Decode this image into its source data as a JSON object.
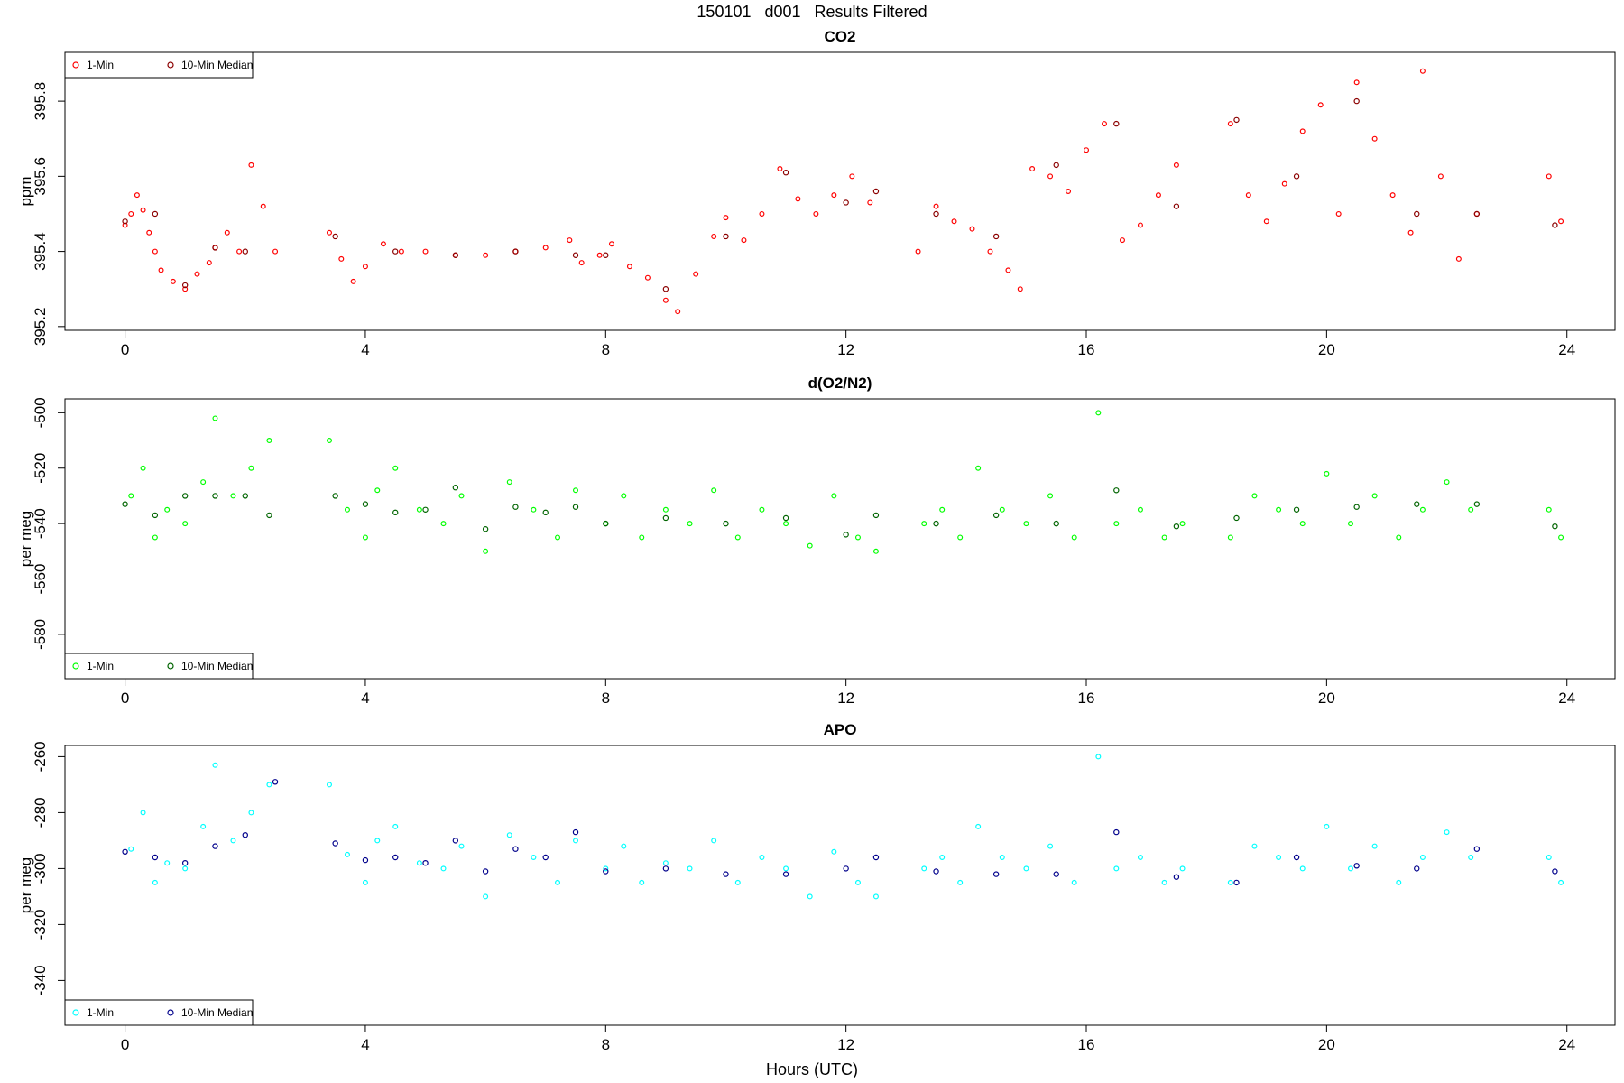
{
  "page": {
    "title": "150101   d001   Results Filtered",
    "x_axis_title": "Hours (UTC)"
  },
  "chart_data": [
    {
      "type": "scatter",
      "title": "CO2",
      "ylabel": "ppm",
      "xlabel": "Hours (UTC)",
      "xlim": [
        -1,
        24.8
      ],
      "ylim": [
        395.19,
        395.93
      ],
      "x_ticks": [
        "0",
        "4",
        "8",
        "12",
        "16",
        "20",
        "24"
      ],
      "y_ticks": [
        "395.2",
        "395.4",
        "395.6",
        "395.8"
      ],
      "legend": [
        "1-Min",
        "10-Min Median"
      ],
      "legend_position": "top-left",
      "colors": {
        "one_min": "#ff0000",
        "median": "#8b0000"
      },
      "series": [
        {
          "name": "1-Min",
          "x": [
            0.0,
            0.1,
            0.2,
            0.3,
            0.4,
            0.5,
            0.6,
            0.8,
            1.0,
            1.2,
            1.4,
            1.5,
            1.7,
            1.9,
            2.1,
            2.3,
            2.5,
            3.4,
            3.6,
            3.8,
            4.0,
            4.3,
            4.6,
            5.0,
            5.5,
            6.0,
            6.5,
            7.0,
            7.4,
            7.6,
            7.9,
            8.1,
            8.4,
            8.7,
            9.0,
            9.2,
            9.5,
            9.8,
            10.0,
            10.3,
            10.6,
            10.9,
            11.2,
            11.5,
            11.8,
            12.1,
            12.4,
            13.2,
            13.5,
            13.8,
            14.1,
            14.4,
            14.7,
            14.9,
            15.1,
            15.4,
            15.7,
            16.0,
            16.3,
            16.6,
            16.9,
            17.2,
            17.5,
            18.4,
            18.7,
            19.0,
            19.3,
            19.6,
            19.9,
            20.2,
            20.5,
            20.8,
            21.1,
            21.4,
            21.6,
            21.9,
            22.2,
            22.5,
            23.7,
            23.9
          ],
          "values": [
            395.47,
            395.5,
            395.55,
            395.51,
            395.45,
            395.4,
            395.35,
            395.32,
            395.3,
            395.34,
            395.37,
            395.41,
            395.45,
            395.4,
            395.63,
            395.52,
            395.4,
            395.45,
            395.38,
            395.32,
            395.36,
            395.42,
            395.4,
            395.4,
            395.39,
            395.39,
            395.4,
            395.41,
            395.43,
            395.37,
            395.39,
            395.42,
            395.36,
            395.33,
            395.27,
            395.24,
            395.34,
            395.44,
            395.49,
            395.43,
            395.5,
            395.62,
            395.54,
            395.5,
            395.55,
            395.6,
            395.53,
            395.4,
            395.52,
            395.48,
            395.46,
            395.4,
            395.35,
            395.3,
            395.62,
            395.6,
            395.56,
            395.67,
            395.74,
            395.43,
            395.47,
            395.55,
            395.63,
            395.74,
            395.55,
            395.48,
            395.58,
            395.72,
            395.79,
            395.5,
            395.85,
            395.7,
            395.55,
            395.45,
            395.88,
            395.6,
            395.38,
            395.5,
            395.6,
            395.48
          ]
        },
        {
          "name": "10-Min Median",
          "x": [
            0.0,
            0.5,
            1.0,
            1.5,
            2.0,
            3.5,
            4.5,
            5.5,
            6.5,
            7.5,
            8.0,
            9.0,
            10.0,
            11.0,
            12.0,
            12.5,
            13.5,
            14.5,
            15.5,
            16.5,
            17.5,
            18.5,
            19.5,
            20.5,
            21.5,
            22.5,
            23.8
          ],
          "values": [
            395.48,
            395.5,
            395.31,
            395.41,
            395.4,
            395.44,
            395.4,
            395.39,
            395.4,
            395.39,
            395.39,
            395.3,
            395.44,
            395.61,
            395.53,
            395.56,
            395.5,
            395.44,
            395.63,
            395.74,
            395.52,
            395.75,
            395.6,
            395.8,
            395.5,
            395.5,
            395.47
          ]
        }
      ]
    },
    {
      "type": "scatter",
      "title": "d(O2/N2)",
      "ylabel": "per meg",
      "xlabel": "Hours (UTC)",
      "xlim": [
        -1,
        24.8
      ],
      "ylim": [
        -596,
        -495
      ],
      "x_ticks": [
        "0",
        "4",
        "8",
        "12",
        "16",
        "20",
        "24"
      ],
      "y_ticks": [
        "-500",
        "-520",
        "-540",
        "-560",
        "-580"
      ],
      "legend": [
        "1-Min",
        "10-Min Median"
      ],
      "legend_position": "bottom-left",
      "colors": {
        "one_min": "#00ff00",
        "median": "#006400"
      },
      "series": [
        {
          "name": "1-Min",
          "x": [
            0.1,
            0.3,
            0.5,
            0.7,
            1.0,
            1.3,
            1.5,
            1.8,
            2.1,
            2.4,
            3.4,
            3.7,
            4.0,
            4.2,
            4.5,
            4.9,
            5.3,
            5.6,
            6.0,
            6.4,
            6.8,
            7.2,
            7.5,
            8.0,
            8.3,
            8.6,
            9.0,
            9.4,
            9.8,
            10.2,
            10.6,
            11.0,
            11.4,
            11.8,
            12.2,
            12.5,
            13.3,
            13.6,
            13.9,
            14.2,
            14.6,
            15.0,
            15.4,
            15.8,
            16.2,
            16.5,
            16.9,
            17.3,
            17.6,
            18.4,
            18.8,
            19.2,
            19.6,
            20.0,
            20.4,
            20.8,
            21.2,
            21.6,
            22.0,
            22.4,
            23.7,
            23.9
          ],
          "values": [
            -530,
            -520,
            -545,
            -535,
            -540,
            -525,
            -502,
            -530,
            -520,
            -510,
            -510,
            -535,
            -545,
            -528,
            -520,
            -535,
            -540,
            -530,
            -550,
            -525,
            -535,
            -545,
            -528,
            -540,
            -530,
            -545,
            -535,
            -540,
            -528,
            -545,
            -535,
            -540,
            -548,
            -530,
            -545,
            -550,
            -540,
            -535,
            -545,
            -520,
            -535,
            -540,
            -530,
            -545,
            -500,
            -540,
            -535,
            -545,
            -540,
            -545,
            -530,
            -535,
            -540,
            -522,
            -540,
            -530,
            -545,
            -535,
            -525,
            -535,
            -535,
            -545
          ]
        },
        {
          "name": "10-Min Median",
          "x": [
            0.0,
            0.5,
            1.0,
            1.5,
            2.0,
            2.4,
            3.5,
            4.0,
            4.5,
            5.0,
            5.5,
            6.0,
            6.5,
            7.0,
            7.5,
            8.0,
            9.0,
            10.0,
            11.0,
            12.0,
            12.5,
            13.5,
            14.5,
            15.5,
            16.5,
            17.5,
            18.5,
            19.5,
            20.5,
            21.5,
            22.5,
            23.8
          ],
          "values": [
            -533,
            -537,
            -530,
            -530,
            -530,
            -537,
            -530,
            -533,
            -536,
            -535,
            -527,
            -542,
            -534,
            -536,
            -534,
            -540,
            -538,
            -540,
            -538,
            -544,
            -537,
            -540,
            -537,
            -540,
            -528,
            -541,
            -538,
            -535,
            -534,
            -533,
            -533,
            -541
          ]
        }
      ]
    },
    {
      "type": "scatter",
      "title": "APO",
      "ylabel": "per meg",
      "xlabel": "Hours (UTC)",
      "xlim": [
        -1,
        24.8
      ],
      "ylim": [
        -356,
        -256
      ],
      "x_ticks": [
        "0",
        "4",
        "8",
        "12",
        "16",
        "20",
        "24"
      ],
      "y_ticks": [
        "-260",
        "-280",
        "-300",
        "-320",
        "-340"
      ],
      "legend": [
        "1-Min",
        "10-Min Median"
      ],
      "legend_position": "bottom-left",
      "colors": {
        "one_min": "#00ffff",
        "median": "#00008b"
      },
      "series": [
        {
          "name": "1-Min",
          "x": [
            0.1,
            0.3,
            0.5,
            0.7,
            1.0,
            1.3,
            1.5,
            1.8,
            2.1,
            2.4,
            3.4,
            3.7,
            4.0,
            4.2,
            4.5,
            4.9,
            5.3,
            5.6,
            6.0,
            6.4,
            6.8,
            7.2,
            7.5,
            8.0,
            8.3,
            8.6,
            9.0,
            9.4,
            9.8,
            10.2,
            10.6,
            11.0,
            11.4,
            11.8,
            12.2,
            12.5,
            13.3,
            13.6,
            13.9,
            14.2,
            14.6,
            15.0,
            15.4,
            15.8,
            16.2,
            16.5,
            16.9,
            17.3,
            17.6,
            18.4,
            18.8,
            19.2,
            19.6,
            20.0,
            20.4,
            20.8,
            21.2,
            21.6,
            22.0,
            22.4,
            23.7,
            23.9
          ],
          "values": [
            -293,
            -280,
            -305,
            -298,
            -300,
            -285,
            -263,
            -290,
            -280,
            -270,
            -270,
            -295,
            -305,
            -290,
            -285,
            -298,
            -300,
            -292,
            -310,
            -288,
            -296,
            -305,
            -290,
            -300,
            -292,
            -305,
            -298,
            -300,
            -290,
            -305,
            -296,
            -300,
            -310,
            -294,
            -305,
            -310,
            -300,
            -296,
            -305,
            -285,
            -296,
            -300,
            -292,
            -305,
            -260,
            -300,
            -296,
            -305,
            -300,
            -305,
            -292,
            -296,
            -300,
            -285,
            -300,
            -292,
            -305,
            -296,
            -287,
            -296,
            -296,
            -305
          ]
        },
        {
          "name": "10-Min Median",
          "x": [
            0.0,
            0.5,
            1.0,
            1.5,
            2.0,
            2.5,
            3.5,
            4.0,
            4.5,
            5.0,
            5.5,
            6.0,
            6.5,
            7.0,
            7.5,
            8.0,
            9.0,
            10.0,
            11.0,
            12.0,
            12.5,
            13.5,
            14.5,
            15.5,
            16.5,
            17.5,
            18.5,
            19.5,
            20.5,
            21.5,
            22.5,
            23.8
          ],
          "values": [
            -294,
            -296,
            -298,
            -292,
            -288,
            -269,
            -291,
            -297,
            -296,
            -298,
            -290,
            -301,
            -293,
            -296,
            -287,
            -301,
            -300,
            -302,
            -302,
            -300,
            -296,
            -301,
            -302,
            -302,
            -287,
            -303,
            -305,
            -296,
            -299,
            -300,
            -293,
            -301
          ]
        }
      ]
    }
  ]
}
